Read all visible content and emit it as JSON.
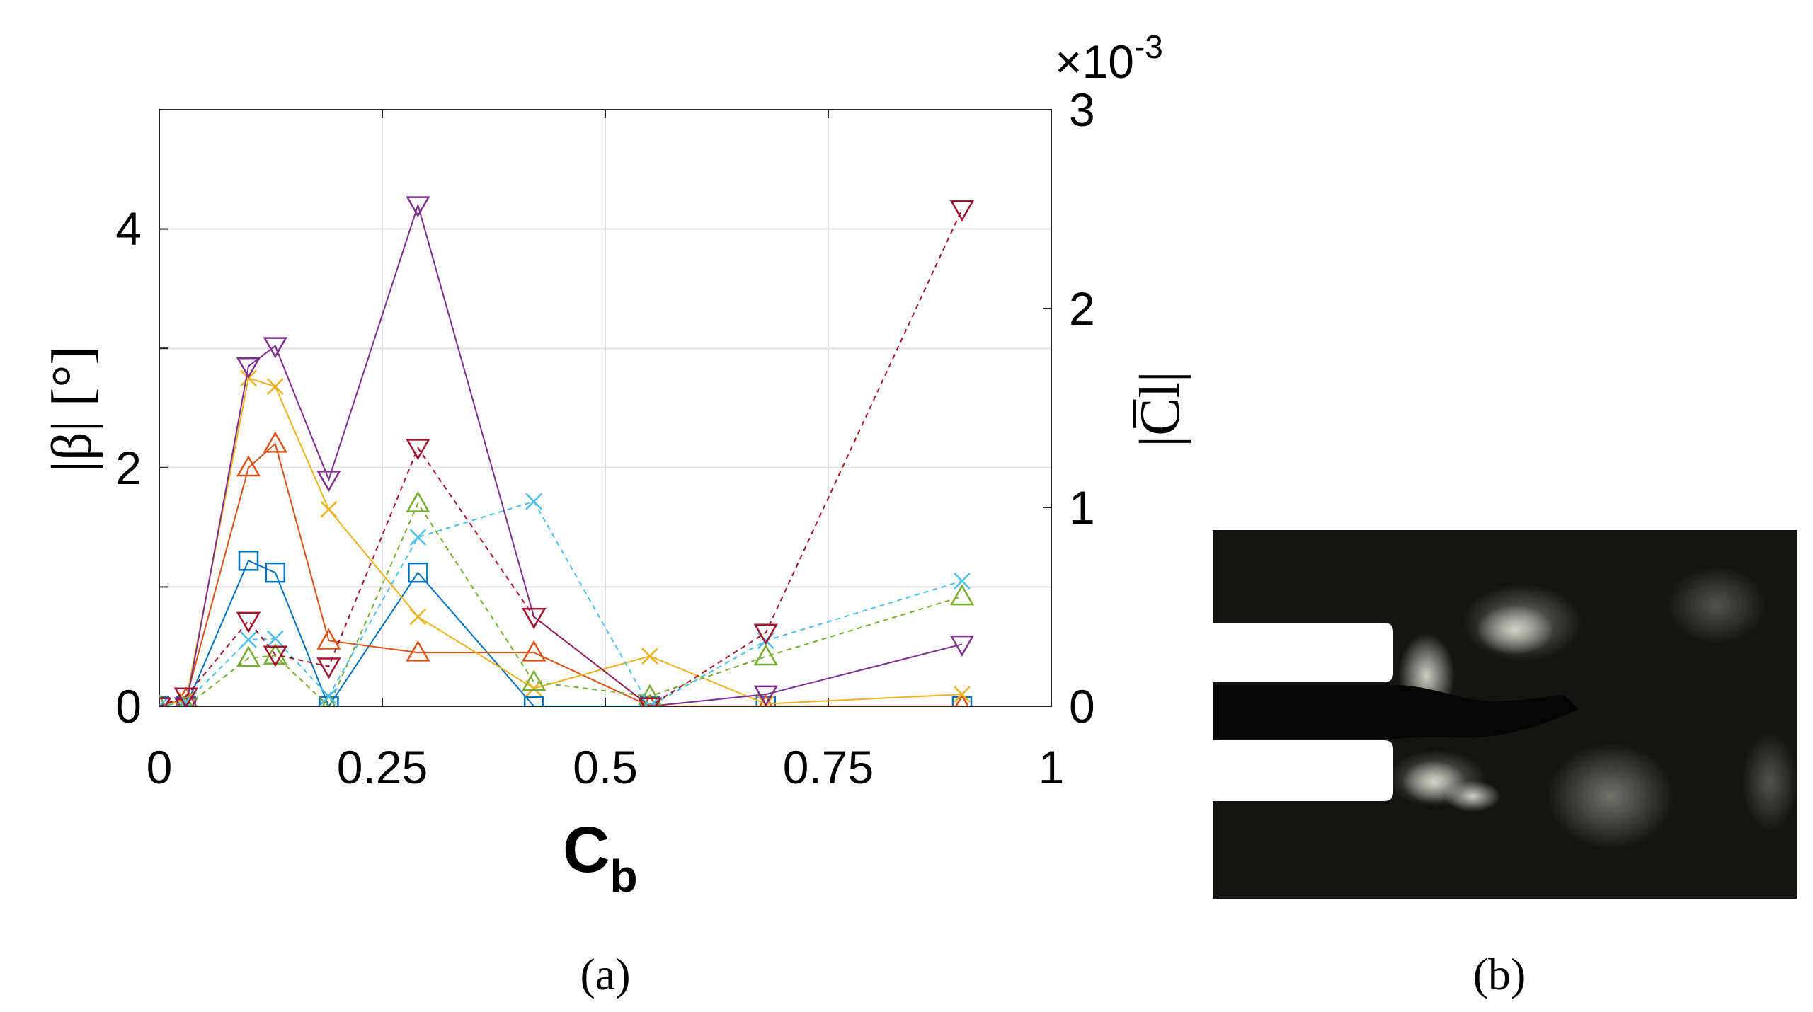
{
  "panels": {
    "a_label": "(a)",
    "b_label": "(b)"
  },
  "chart_data": {
    "type": "line",
    "x_label_base": "C",
    "x_label_sub": "b",
    "y_left_label": "|β| [°]",
    "y_right_label": "|C̅l|",
    "y_right_multiplier_prefix": "×10",
    "y_right_multiplier_exp": "-3",
    "xlim": [
      0,
      1
    ],
    "ylim_left": [
      0,
      5
    ],
    "ylim_right": [
      0,
      3
    ],
    "x_ticks": [
      "0",
      "0.25",
      "0.5",
      "0.75",
      "1"
    ],
    "y_left_ticks": [
      "0",
      "2",
      "4"
    ],
    "y_right_ticks": [
      "0",
      "1",
      "2",
      "3"
    ],
    "grid": true,
    "x": [
      0,
      0.03,
      0.1,
      0.13,
      0.19,
      0.29,
      0.42,
      0.55,
      0.68,
      0.9
    ],
    "series": [
      {
        "axis": "left",
        "style": "solid",
        "marker": "square",
        "color": "#0072BD",
        "values": [
          0,
          0,
          1.22,
          1.12,
          0,
          1.12,
          0,
          0,
          0,
          0
        ]
      },
      {
        "axis": "left",
        "style": "solid",
        "marker": "triangle-up",
        "color": "#D95319",
        "values": [
          0,
          0.06,
          2.0,
          2.2,
          0.55,
          0.45,
          0.45,
          0,
          0,
          0
        ]
      },
      {
        "axis": "left",
        "style": "solid",
        "marker": "x",
        "color": "#EDB120",
        "values": [
          0,
          0.05,
          2.75,
          2.68,
          1.65,
          0.75,
          0.15,
          0.42,
          0.02,
          0.1
        ]
      },
      {
        "axis": "left",
        "style": "solid",
        "marker": "triangle-down",
        "color": "#7E2F8E",
        "values": [
          0,
          0,
          2.85,
          3.02,
          1.9,
          4.2,
          0.75,
          0,
          0.1,
          0.52
        ]
      },
      {
        "axis": "right",
        "style": "dashed",
        "marker": "triangle-up",
        "color": "#77AC30",
        "values": [
          0,
          0,
          0.000242,
          0.000255,
          0,
          0.00102,
          0.000122,
          5e-05,
          0.00025,
          0.000552
        ]
      },
      {
        "axis": "right",
        "style": "dashed",
        "marker": "x",
        "color": "#4DBEEE",
        "values": [
          0,
          2e-05,
          0.000335,
          0.00034,
          5e-05,
          0.00085,
          0.00103,
          0,
          0.00033,
          0.00063
        ]
      },
      {
        "axis": "right",
        "style": "dashed",
        "marker": "triangle-down",
        "color": "#A2142F",
        "values": [
          0,
          5e-05,
          0.00043,
          0.00026,
          0.0002,
          0.0013,
          0.00045,
          0,
          0.00037,
          0.0025
        ]
      }
    ]
  }
}
